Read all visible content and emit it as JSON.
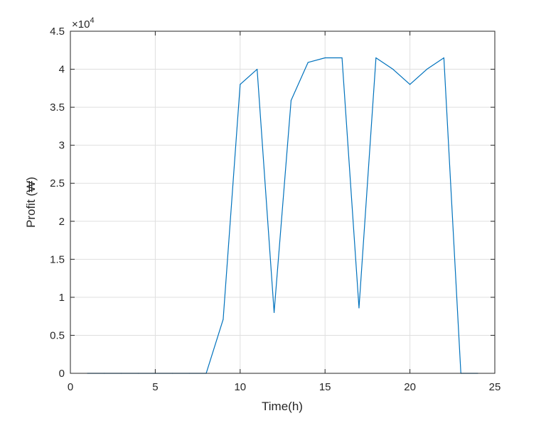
{
  "chart_data": {
    "type": "line",
    "xlabel": "Time(h)",
    "ylabel": "Profit (₩)",
    "exponent_label": "×10",
    "exponent_power": "4",
    "xlim": [
      0,
      25
    ],
    "ylim": [
      0,
      45000
    ],
    "x_ticks": [
      0,
      5,
      10,
      15,
      20,
      25
    ],
    "x_tick_labels": [
      "0",
      "5",
      "10",
      "15",
      "20",
      "25"
    ],
    "y_ticks": [
      0,
      5000,
      10000,
      15000,
      20000,
      25000,
      30000,
      35000,
      40000,
      45000
    ],
    "y_tick_labels": [
      "0",
      "0.5",
      "1",
      "1.5",
      "2",
      "2.5",
      "3",
      "3.5",
      "4",
      "4.5"
    ],
    "grid": true,
    "series": [
      {
        "color": "#0072bd",
        "x": [
          1,
          2,
          3,
          4,
          5,
          6,
          7,
          8,
          9,
          10,
          11,
          12,
          13,
          14,
          15,
          16,
          17,
          18,
          19,
          20,
          21,
          22,
          23,
          24
        ],
        "y": [
          0,
          0,
          0,
          0,
          0,
          0,
          0,
          0,
          7100,
          38000,
          40000,
          8000,
          35900,
          40900,
          41500,
          41500,
          8600,
          41500,
          40000,
          38000,
          40000,
          41500,
          0,
          0
        ]
      }
    ]
  }
}
